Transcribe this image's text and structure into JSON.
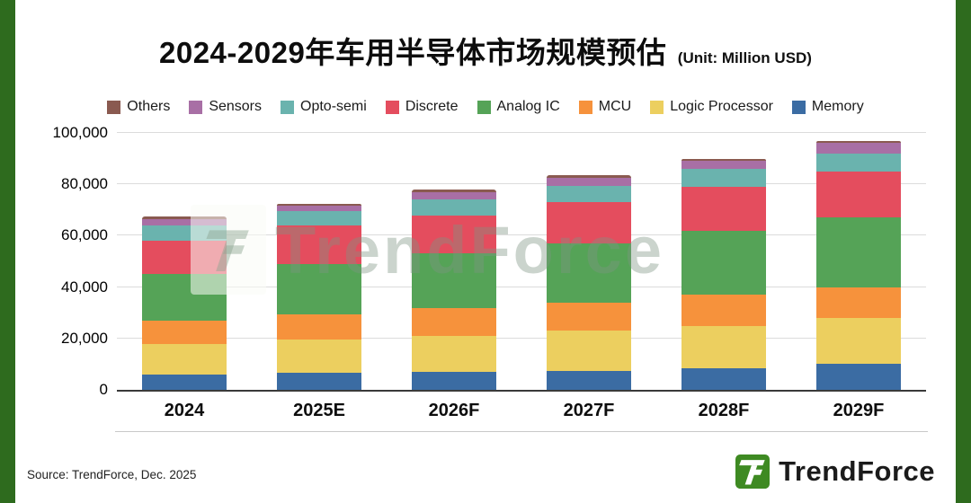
{
  "title": {
    "text": "2024-2029年车用半导体市场规模预估",
    "unit": "(Unit: Million USD)"
  },
  "watermark": {
    "text": "TrendForce"
  },
  "footer": {
    "source": "Source: TrendForce, Dec. 2025",
    "logo_text": "TrendForce"
  },
  "colors": {
    "edge_green": "#2e6b1e",
    "logo_green": "#3e8a22",
    "axis": "#3a3a3a",
    "grid": "#dcdcdc"
  },
  "chart_data": {
    "type": "bar",
    "stacked": true,
    "title": "2024-2029年车用半导体市场规模预估",
    "unit": "Million USD",
    "categories": [
      "2024",
      "2025E",
      "2026F",
      "2027F",
      "2028F",
      "2029F"
    ],
    "series": [
      {
        "name": "Memory",
        "color": "#3b6ca3",
        "values": [
          6000,
          6500,
          7000,
          7500,
          8500,
          10000
        ]
      },
      {
        "name": "Logic Processor",
        "color": "#eccf5f",
        "values": [
          12000,
          13000,
          14000,
          15500,
          16500,
          18000
        ]
      },
      {
        "name": "MCU",
        "color": "#f6923c",
        "values": [
          9000,
          10000,
          11000,
          11000,
          12000,
          12000
        ]
      },
      {
        "name": "Analog IC",
        "color": "#55a357",
        "values": [
          18000,
          19500,
          21000,
          23000,
          25000,
          27000
        ]
      },
      {
        "name": "Discrete",
        "color": "#e44d5e",
        "values": [
          13000,
          15000,
          15000,
          16000,
          17000,
          18000
        ]
      },
      {
        "name": "Opto-semi",
        "color": "#6ab3ae",
        "values": [
          6000,
          5500,
          6000,
          6500,
          7000,
          7000
        ]
      },
      {
        "name": "Sensors",
        "color": "#a86fa5",
        "values": [
          2500,
          2200,
          3000,
          3000,
          3200,
          4000
        ]
      },
      {
        "name": "Others",
        "color": "#8a5a50",
        "values": [
          1000,
          800,
          1000,
          1000,
          800,
          1000
        ]
      }
    ],
    "totals": [
      67500,
      72500,
      78000,
      83500,
      90000,
      97000
    ],
    "legend_order": [
      "Others",
      "Sensors",
      "Opto-semi",
      "Discrete",
      "Analog IC",
      "MCU",
      "Logic Processor",
      "Memory"
    ],
    "legend_position": "top",
    "ylim": [
      0,
      100000
    ],
    "yticks": [
      0,
      20000,
      40000,
      60000,
      80000,
      100000
    ],
    "grid": true
  }
}
